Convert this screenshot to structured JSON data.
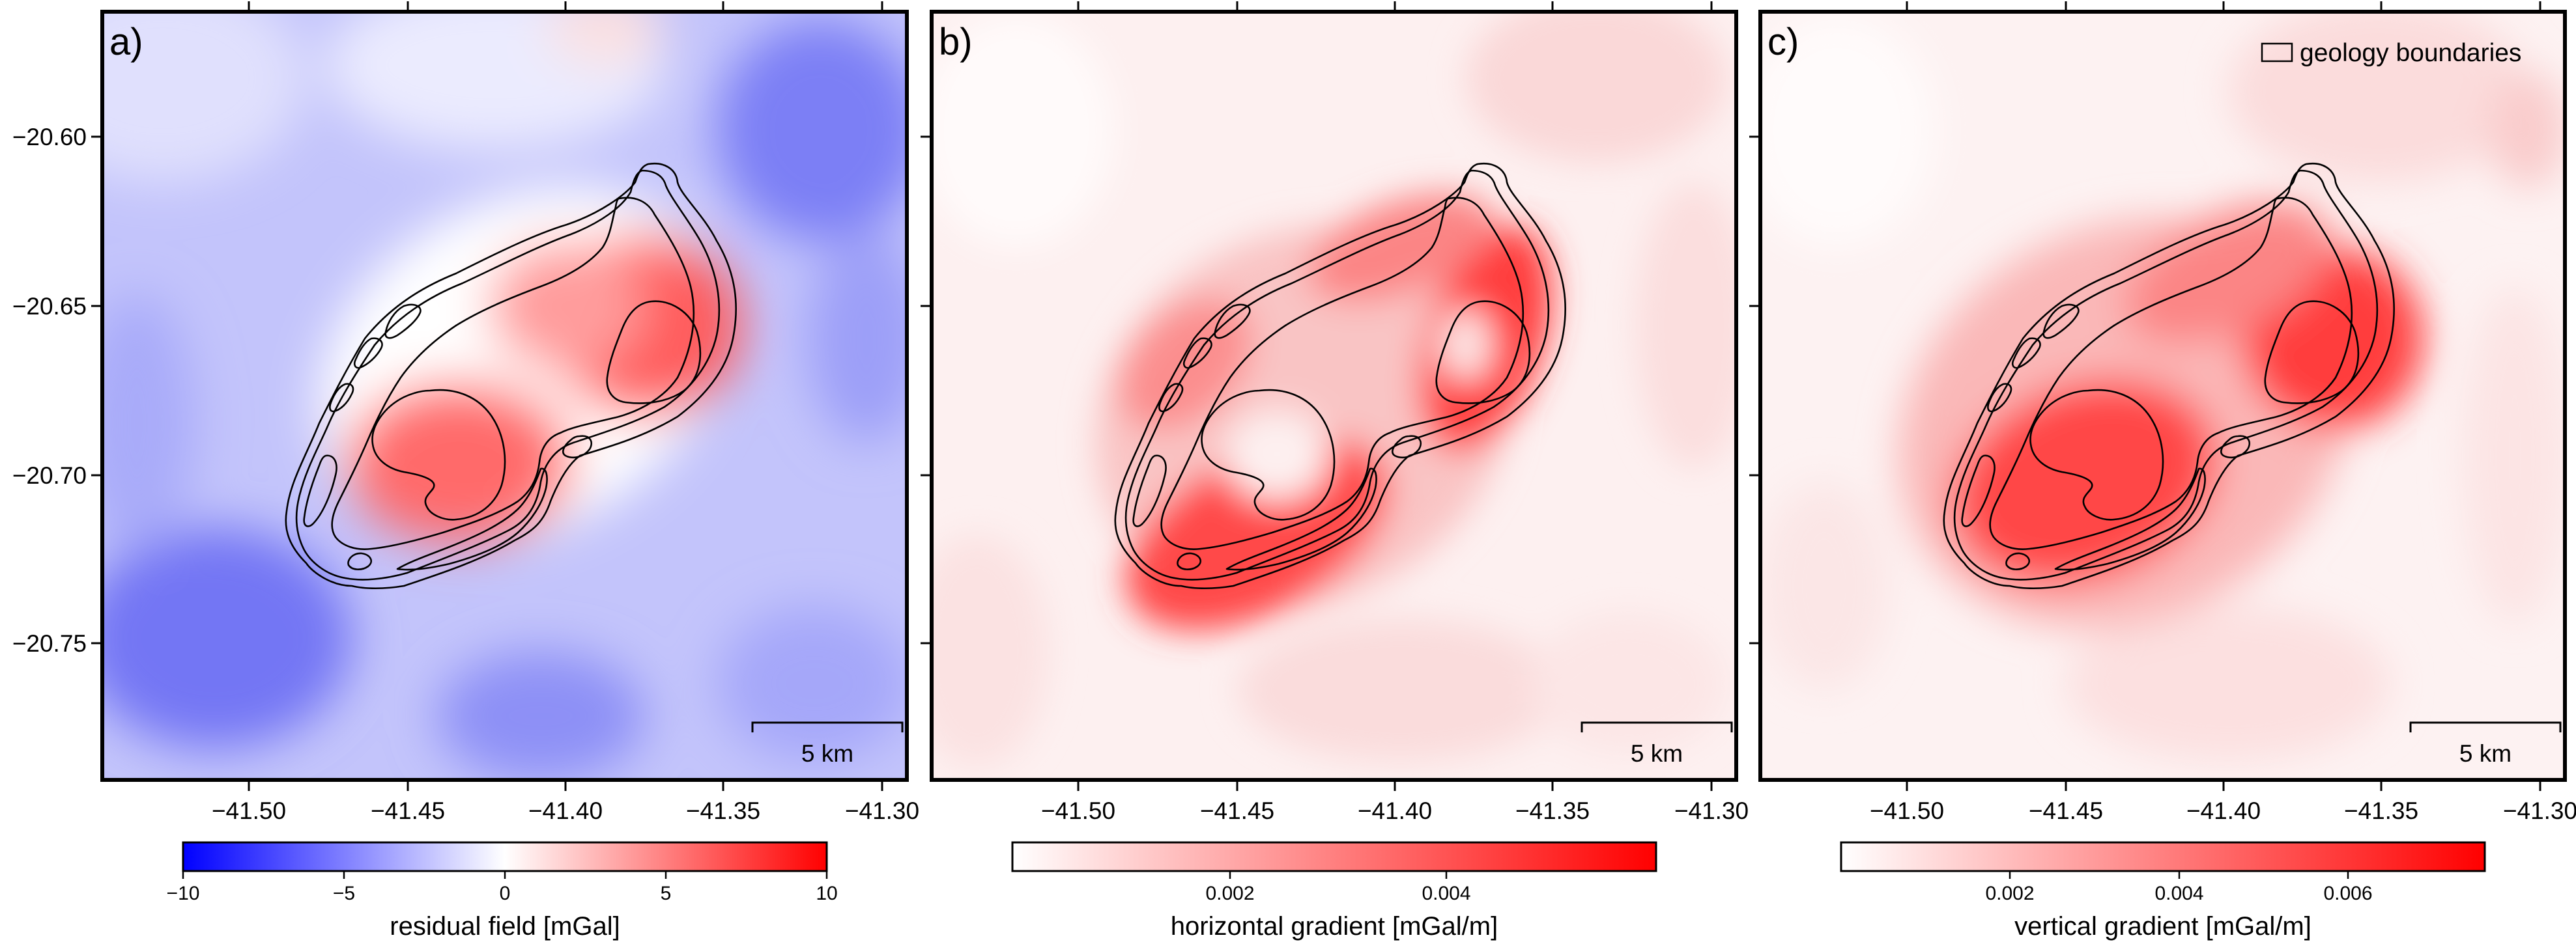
{
  "chart_data": [
    {
      "type": "heatmap",
      "panel": "a)",
      "x_ticks": [
        "−41.50",
        "−41.45",
        "−41.40",
        "−41.35",
        "−41.30"
      ],
      "y_ticks": [
        "−20.60",
        "−20.65",
        "−20.70",
        "−20.75"
      ],
      "xlim": [
        -41.545,
        -41.295
      ],
      "ylim": [
        -20.793,
        -20.564
      ],
      "scale_bar": "5 km",
      "colorbar": {
        "label": "residual field [mGal]",
        "ticks": [
          "−10",
          "−5",
          "0",
          "5",
          "10"
        ],
        "range": [
          -10,
          10
        ],
        "colors": [
          "#0000ff",
          "#ffffff",
          "#ff0000"
        ]
      }
    },
    {
      "type": "heatmap",
      "panel": "b)",
      "x_ticks": [
        "−41.50",
        "−41.45",
        "−41.40",
        "−41.35",
        "−41.30"
      ],
      "xlim": [
        -41.545,
        -41.295
      ],
      "ylim": [
        -20.793,
        -20.564
      ],
      "scale_bar": "5 km",
      "colorbar": {
        "label": "horizontal gradient [mGal/m]",
        "ticks": [
          "0.002",
          "0.004"
        ],
        "range": [
          0,
          0.0057
        ],
        "colors": [
          "#ffffff",
          "#ff0000"
        ]
      }
    },
    {
      "type": "heatmap",
      "panel": "c)",
      "x_ticks": [
        "−41.50",
        "−41.45",
        "−41.40",
        "−41.35",
        "−41.30"
      ],
      "xlim": [
        -41.545,
        -41.295
      ],
      "ylim": [
        -20.793,
        -20.564
      ],
      "scale_bar": "5 km",
      "legend": "geology boundaries",
      "legend_position": "top-right",
      "colorbar": {
        "label": "vertical gradient [mGal/m]",
        "ticks": [
          "0.002",
          "0.004",
          "0.006"
        ],
        "range": [
          0,
          0.0075
        ],
        "colors": [
          "#ffffff",
          "#ff0000"
        ]
      }
    }
  ]
}
